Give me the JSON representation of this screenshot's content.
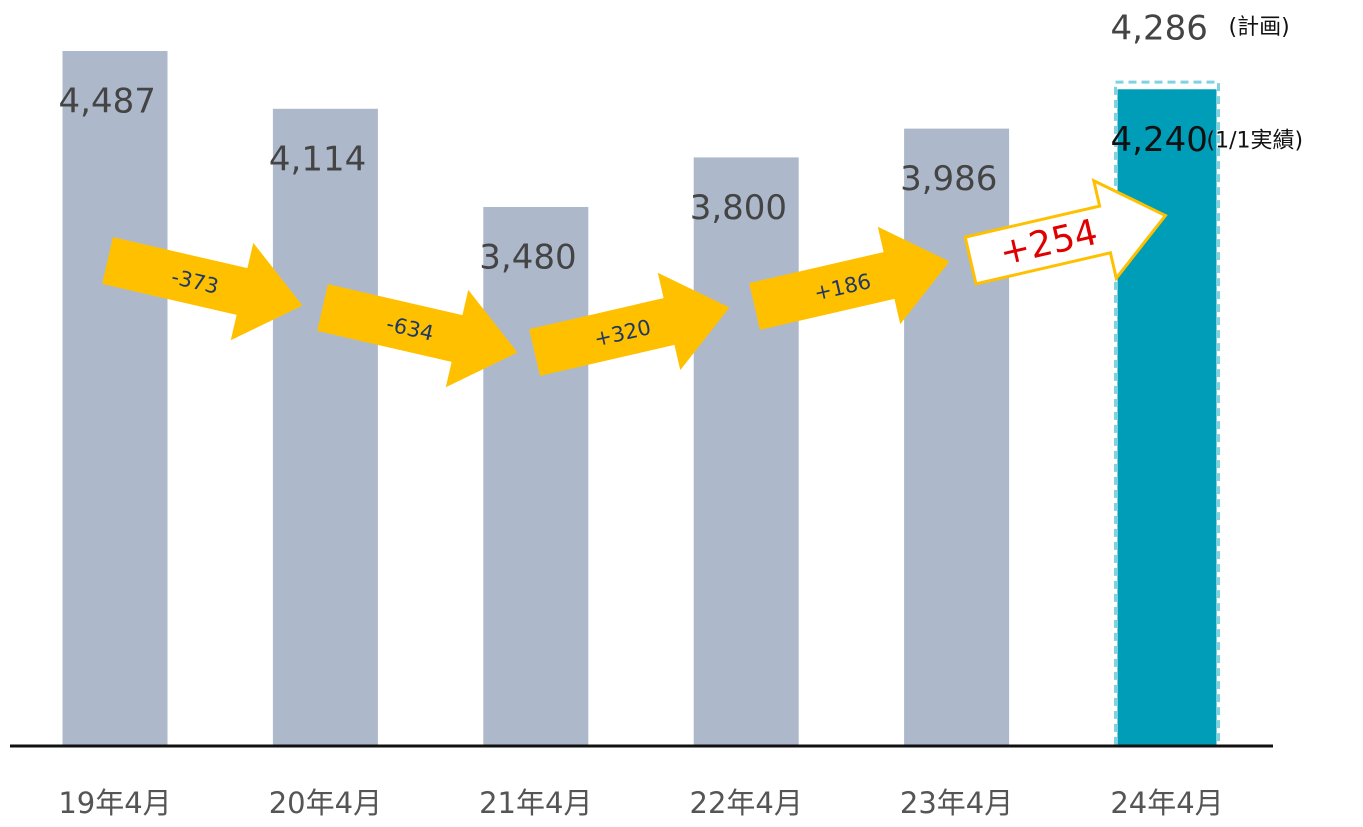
{
  "chart_data": {
    "type": "bar",
    "categories": [
      "19年4月",
      "20年4月",
      "21年4月",
      "22年4月",
      "23年4月",
      "24年4月"
    ],
    "values": [
      4487,
      4114,
      3480,
      3800,
      3986,
      4240
    ],
    "value_labels": [
      "4,487",
      "4,114",
      "3,480",
      "3,800",
      "3,986",
      "4,240"
    ],
    "colors": [
      "#adb9ca",
      "#adb9ca",
      "#adb9ca",
      "#adb9ca",
      "#adb9ca",
      "#009db8"
    ],
    "actual_note": "(1/1実績)",
    "plan": {
      "value": 4286,
      "label": "4,286",
      "note": "(計画)"
    },
    "changes": [
      -373,
      -634,
      320,
      186,
      254
    ],
    "change_labels": [
      "-373",
      "-634",
      "+320",
      "+186",
      "+254"
    ],
    "ylim": [
      0,
      4500
    ]
  }
}
